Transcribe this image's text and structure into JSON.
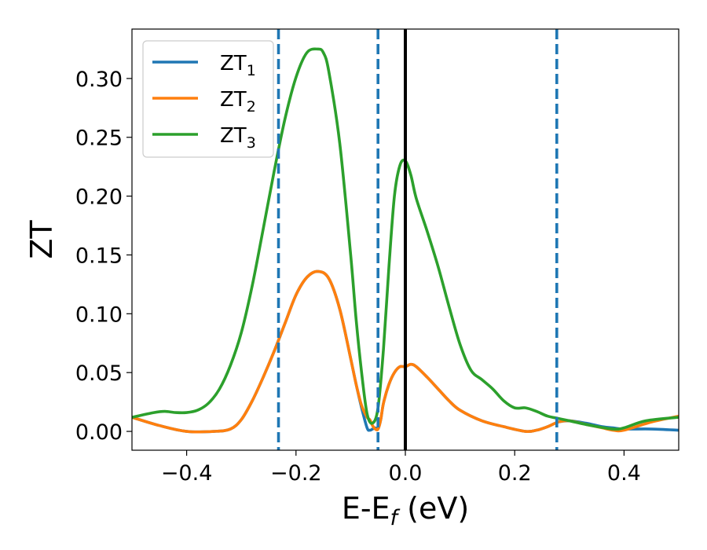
{
  "chart_data": {
    "type": "line",
    "xlabel_main": "E-E",
    "xlabel_sub": "f",
    "xlabel_unit": " (eV)",
    "ylabel": "ZT",
    "xlim": [
      -0.5,
      0.5
    ],
    "ylim": [
      -0.016,
      0.342
    ],
    "grid": false,
    "legend_position": "top-left",
    "xticks": [
      -0.4,
      -0.2,
      0.0,
      0.2,
      0.4
    ],
    "xtick_labels": [
      "−0.4",
      "−0.2",
      "0.0",
      "0.2",
      "0.4"
    ],
    "yticks": [
      0.0,
      0.05,
      0.1,
      0.15,
      0.2,
      0.25,
      0.3
    ],
    "ytick_labels": [
      "0.00",
      "0.05",
      "0.10",
      "0.15",
      "0.20",
      "0.25",
      "0.30"
    ],
    "reference_lines": [
      {
        "x": -0.232,
        "style": "dashed",
        "color": "#1f77b4"
      },
      {
        "x": -0.05,
        "style": "dashed",
        "color": "#1f77b4"
      },
      {
        "x": 0.0,
        "style": "solid",
        "color": "#000000"
      },
      {
        "x": 0.277,
        "style": "dashed",
        "color": "#1f77b4"
      }
    ],
    "series": [
      {
        "name": "ZT",
        "name_sub": "1",
        "color": "#1f77b4",
        "x": [
          -0.5,
          -0.45,
          -0.4,
          -0.35,
          -0.32,
          -0.3,
          -0.28,
          -0.26,
          -0.24,
          -0.22,
          -0.2,
          -0.18,
          -0.16,
          -0.14,
          -0.12,
          -0.1,
          -0.09,
          -0.08,
          -0.07,
          -0.065,
          -0.06,
          -0.055,
          -0.05,
          -0.045,
          -0.04,
          -0.03,
          -0.02,
          -0.01,
          0.0,
          0.01,
          0.02,
          0.04,
          0.06,
          0.08,
          0.1,
          0.14,
          0.18,
          0.22,
          0.24,
          0.26,
          0.28,
          0.3,
          0.33,
          0.36,
          0.38,
          0.4,
          0.45,
          0.5
        ],
        "y": [
          0.012,
          0.005,
          0.0,
          0.0,
          0.002,
          0.01,
          0.026,
          0.046,
          0.068,
          0.092,
          0.116,
          0.131,
          0.136,
          0.13,
          0.104,
          0.062,
          0.04,
          0.02,
          0.003,
          0.001,
          0.002,
          0.003,
          0.002,
          0.01,
          0.024,
          0.04,
          0.05,
          0.055,
          0.055,
          0.057,
          0.055,
          0.046,
          0.036,
          0.026,
          0.018,
          0.009,
          0.004,
          0.0,
          0.001,
          0.004,
          0.008,
          0.009,
          0.007,
          0.004,
          0.003,
          0.002,
          0.002,
          0.001
        ]
      },
      {
        "name": "ZT",
        "name_sub": "2",
        "color": "#ff7f0e",
        "x": [
          -0.5,
          -0.45,
          -0.4,
          -0.35,
          -0.32,
          -0.3,
          -0.28,
          -0.26,
          -0.24,
          -0.22,
          -0.2,
          -0.18,
          -0.16,
          -0.14,
          -0.12,
          -0.1,
          -0.09,
          -0.08,
          -0.07,
          -0.065,
          -0.06,
          -0.055,
          -0.05,
          -0.045,
          -0.04,
          -0.03,
          -0.02,
          -0.01,
          0.0,
          0.01,
          0.02,
          0.04,
          0.06,
          0.08,
          0.1,
          0.14,
          0.18,
          0.22,
          0.24,
          0.26,
          0.28,
          0.3,
          0.33,
          0.36,
          0.38,
          0.4,
          0.45,
          0.5
        ],
        "y": [
          0.012,
          0.005,
          0.0,
          0.0,
          0.002,
          0.01,
          0.026,
          0.046,
          0.068,
          0.092,
          0.116,
          0.131,
          0.136,
          0.13,
          0.104,
          0.062,
          0.04,
          0.022,
          0.012,
          0.01,
          0.005,
          0.002,
          0.002,
          0.01,
          0.024,
          0.04,
          0.05,
          0.055,
          0.055,
          0.057,
          0.055,
          0.046,
          0.036,
          0.026,
          0.018,
          0.009,
          0.004,
          0.0,
          0.001,
          0.004,
          0.008,
          0.009,
          0.006,
          0.003,
          0.001,
          0.001,
          0.008,
          0.013
        ]
      },
      {
        "name": "ZT",
        "name_sub": "3",
        "color": "#2ca02c",
        "x": [
          -0.5,
          -0.46,
          -0.44,
          -0.42,
          -0.4,
          -0.38,
          -0.36,
          -0.34,
          -0.32,
          -0.3,
          -0.28,
          -0.26,
          -0.24,
          -0.22,
          -0.2,
          -0.18,
          -0.16,
          -0.15,
          -0.14,
          -0.12,
          -0.1,
          -0.09,
          -0.08,
          -0.07,
          -0.06,
          -0.05,
          -0.04,
          -0.03,
          -0.02,
          -0.01,
          0.0,
          0.01,
          0.02,
          0.04,
          0.06,
          0.08,
          0.1,
          0.12,
          0.14,
          0.16,
          0.18,
          0.2,
          0.22,
          0.24,
          0.26,
          0.28,
          0.3,
          0.34,
          0.38,
          0.4,
          0.44,
          0.5
        ],
        "y": [
          0.012,
          0.016,
          0.017,
          0.016,
          0.016,
          0.018,
          0.024,
          0.036,
          0.056,
          0.084,
          0.124,
          0.172,
          0.221,
          0.266,
          0.301,
          0.322,
          0.325,
          0.322,
          0.306,
          0.245,
          0.15,
          0.095,
          0.05,
          0.015,
          0.007,
          0.02,
          0.07,
          0.14,
          0.2,
          0.226,
          0.23,
          0.218,
          0.198,
          0.17,
          0.14,
          0.106,
          0.074,
          0.052,
          0.044,
          0.036,
          0.026,
          0.02,
          0.02,
          0.017,
          0.013,
          0.011,
          0.009,
          0.005,
          0.002,
          0.003,
          0.009,
          0.012
        ]
      }
    ]
  }
}
